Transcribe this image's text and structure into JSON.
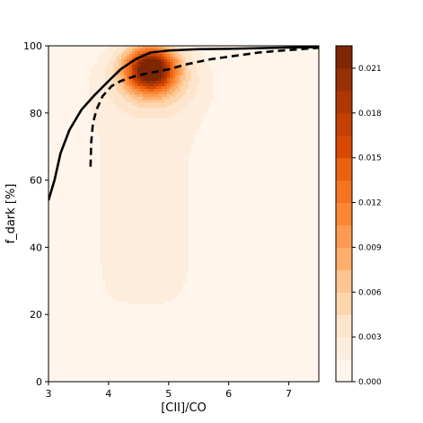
{
  "chart_data": {
    "type": "contour",
    "xlabel": "[CII]/CO",
    "ylabel": "f_dark [%]",
    "xlim": [
      3,
      7.5
    ],
    "ylim": [
      0,
      100
    ],
    "x_ticks": [
      3,
      4,
      5,
      6,
      7
    ],
    "y_ticks": [
      0,
      20,
      40,
      60,
      80,
      100
    ],
    "grid": false,
    "density": {
      "colormap": "Oranges",
      "peak": {
        "x": 4.7,
        "y": 93,
        "value": 0.022
      },
      "levels": [
        0.0,
        0.0015,
        0.003,
        0.0045,
        0.006,
        0.0075,
        0.009,
        0.0105,
        0.012,
        0.0135,
        0.015,
        0.0165,
        0.018,
        0.0195,
        0.021,
        0.0225
      ],
      "level_colors": [
        "#fff5eb",
        "#feeddc",
        "#fde5cd",
        "#fdd6ae",
        "#fdc590",
        "#fdae6b",
        "#fd9a50",
        "#fb8634",
        "#f57321",
        "#ea6210",
        "#d94901",
        "#c54102",
        "#ad3803",
        "#983003",
        "#7f2704"
      ]
    },
    "colorbar": {
      "ticks": [
        0.0,
        0.003,
        0.006,
        0.009,
        0.012,
        0.015,
        0.018,
        0.021
      ],
      "tick_labels": [
        "0.000",
        "0.003",
        "0.006",
        "0.009",
        "0.012",
        "0.015",
        "0.018",
        "0.021"
      ],
      "range": [
        0,
        0.0225
      ]
    },
    "series": [
      {
        "style": "solid",
        "color": "#000000",
        "x": [
          3.0,
          3.1,
          3.2,
          3.35,
          3.55,
          3.75,
          4.0,
          4.2,
          4.45,
          4.7,
          5.0,
          5.5,
          6.0,
          6.5,
          7.0,
          7.5
        ],
        "y": [
          54,
          60,
          68,
          75,
          81,
          85,
          89.5,
          93,
          96,
          98,
          98.6,
          99,
          99.1,
          99.3,
          99.5,
          99.6
        ]
      },
      {
        "style": "dashed",
        "color": "#000000",
        "x": [
          3.7,
          3.71,
          3.74,
          3.8,
          3.9,
          4.05,
          4.2,
          4.45,
          4.7,
          5.0,
          5.3,
          5.7,
          6.1,
          6.5,
          6.9,
          7.2,
          7.5
        ],
        "y": [
          64,
          71,
          77,
          81,
          85,
          88,
          89.5,
          91,
          92,
          93,
          94.5,
          96,
          97,
          98,
          98.6,
          99,
          99.4
        ]
      }
    ]
  }
}
